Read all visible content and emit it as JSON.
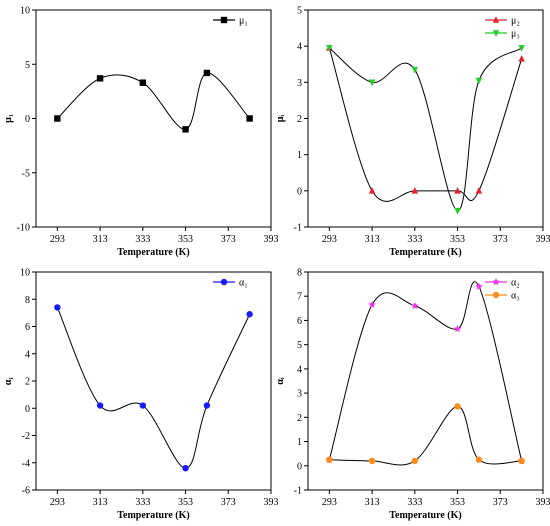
{
  "chart_data": [
    {
      "type": "line",
      "title": "",
      "xlabel": "Temperature (K)",
      "ylabel": "μ₁",
      "xlim": [
        283,
        393
      ],
      "ylim": [
        -10,
        10
      ],
      "xticks": [
        293,
        313,
        333,
        353,
        373,
        393
      ],
      "yticks": [
        -10,
        -5,
        0,
        5,
        10
      ],
      "grid": false,
      "legend_position": "top-right",
      "series": [
        {
          "name": "μ₁",
          "color": "#000000",
          "marker": "square",
          "x": [
            293,
            313,
            333,
            353,
            363,
            383
          ],
          "y": [
            0,
            3.7,
            3.3,
            -1.0,
            4.2,
            0
          ]
        }
      ]
    },
    {
      "type": "line",
      "title": "",
      "xlabel": "Temperature (K)",
      "ylabel": "μᵢ",
      "xlim": [
        283,
        393
      ],
      "ylim": [
        -1,
        5
      ],
      "xticks": [
        293,
        313,
        333,
        353,
        373,
        393
      ],
      "yticks": [
        -1,
        0,
        1,
        2,
        3,
        4,
        5
      ],
      "grid": false,
      "legend_position": "top-right",
      "series": [
        {
          "name": "μ₂",
          "color": "#e8202a",
          "marker": "triangle-up",
          "x": [
            293,
            313,
            333,
            353,
            363,
            383
          ],
          "y": [
            3.95,
            0,
            0,
            0,
            0,
            3.65
          ]
        },
        {
          "name": "μ₃",
          "color": "#22cc22",
          "marker": "triangle-down",
          "x": [
            293,
            313,
            333,
            353,
            363,
            383
          ],
          "y": [
            3.95,
            3.0,
            3.35,
            -0.55,
            3.05,
            3.95
          ]
        }
      ]
    },
    {
      "type": "line",
      "title": "",
      "xlabel": "Temperature (K)",
      "ylabel": "α₁",
      "xlim": [
        283,
        393
      ],
      "ylim": [
        -6,
        10
      ],
      "xticks": [
        293,
        313,
        333,
        353,
        373,
        393
      ],
      "yticks": [
        -6,
        -4,
        -2,
        0,
        2,
        4,
        6,
        8,
        10
      ],
      "grid": false,
      "legend_position": "top-right",
      "series": [
        {
          "name": "α₁",
          "color": "#1a1aff",
          "marker": "circle",
          "x": [
            293,
            313,
            333,
            353,
            363,
            383
          ],
          "y": [
            7.4,
            0.2,
            0.2,
            -4.4,
            0.2,
            6.9
          ]
        }
      ]
    },
    {
      "type": "line",
      "title": "",
      "xlabel": "Temperature (K)",
      "ylabel": "αᵢ",
      "xlim": [
        283,
        393
      ],
      "ylim": [
        -1,
        8
      ],
      "xticks": [
        293,
        313,
        333,
        353,
        373,
        393
      ],
      "yticks": [
        -1,
        0,
        1,
        2,
        3,
        4,
        5,
        6,
        7,
        8
      ],
      "grid": false,
      "legend_position": "top-right",
      "series": [
        {
          "name": "α₂",
          "color": "#ee33ee",
          "marker": "star",
          "x": [
            293,
            313,
            333,
            353,
            363,
            383
          ],
          "y": [
            0.25,
            6.65,
            6.6,
            5.65,
            7.4,
            0.2
          ]
        },
        {
          "name": "α₃",
          "color": "#ff8c1a",
          "marker": "circle",
          "x": [
            293,
            313,
            333,
            353,
            363,
            383
          ],
          "y": [
            0.25,
            0.2,
            0.2,
            2.45,
            0.25,
            0.2
          ]
        }
      ]
    }
  ]
}
